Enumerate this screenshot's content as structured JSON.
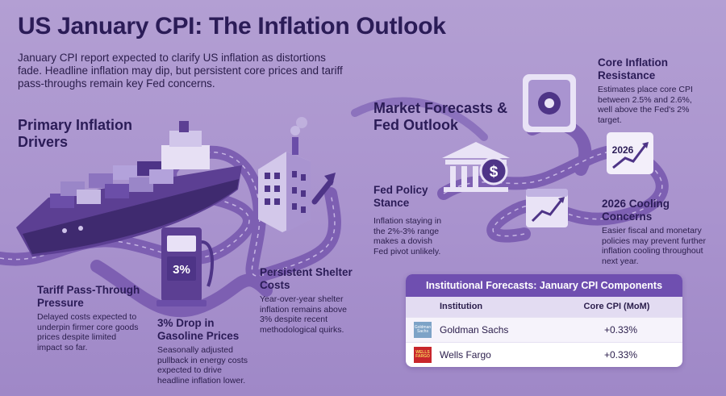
{
  "header": {
    "title": "US January CPI: The Inflation Outlook",
    "subtitle": "January CPI report expected to clarify US inflation as distortions fade. Headline inflation may dip, but persistent core prices and tariff pass-throughs remain key Fed concerns."
  },
  "drivers": {
    "heading": "Primary Inflation Drivers",
    "pump_label": "3%",
    "tariff": {
      "title": "Tariff Pass-Through Pressure",
      "body": "Delayed costs expected to underpin firmer core goods prices despite limited impact so far."
    },
    "gasoline": {
      "title": "3% Drop in Gasoline Prices",
      "body": "Seasonally adjusted pullback in energy costs expected to drive headline inflation lower."
    },
    "shelter": {
      "title": "Persistent Shelter Costs",
      "body": "Year-over-year shelter inflation remains above 3% despite recent methodological quirks."
    }
  },
  "forecasts": {
    "heading": "Market Forecasts & Fed Outlook",
    "core": {
      "title": "Core Inflation Resistance",
      "body": "Estimates place core CPI between 2.5% and 2.6%, well above the Fed's 2% target."
    },
    "fed": {
      "title": "Fed Policy Stance",
      "body": "Inflation staying in the 2%-3% range makes a dovish Fed pivot unlikely."
    },
    "cooling": {
      "title": "2026 Cooling Concerns",
      "body": "Easier fiscal and monetary policies may prevent further inflation cooling throughout next year."
    },
    "calendar_year": "2026"
  },
  "table": {
    "title": "Institutional Forecasts: January CPI Components",
    "col_institution": "Institution",
    "col_core": "Core CPI (MoM)",
    "rows": [
      {
        "logo": "Goldman Sachs",
        "institution": "Goldman Sachs",
        "core": "+0.33%"
      },
      {
        "logo": "WELLS FARGO",
        "institution": "Wells Fargo",
        "core": "+0.33%"
      }
    ]
  },
  "colors": {
    "background": "#a993ce",
    "title": "#2b1c57",
    "table_header": "#6f4fb0",
    "road": "#7d5fb2",
    "wells_fargo": "#c8262c"
  }
}
